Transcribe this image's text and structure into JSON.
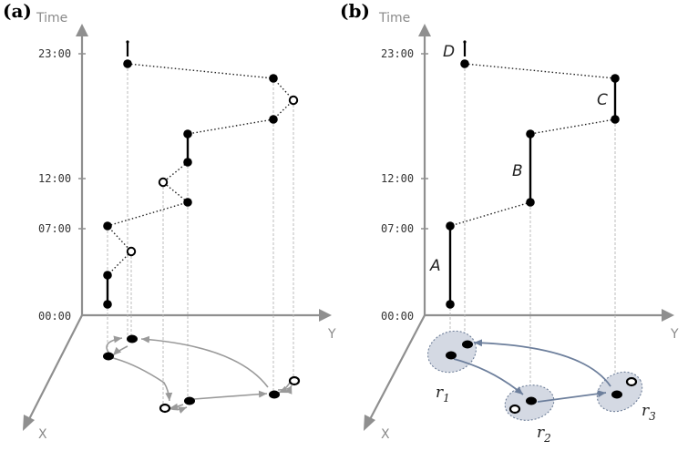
{
  "panels": [
    {
      "label": "(a)"
    },
    {
      "label": "(b)"
    }
  ],
  "axes": {
    "time": "Time",
    "y": "Y",
    "x": "X"
  },
  "time_ticks": [
    "23:00",
    "12:00",
    "07:00",
    "00:00"
  ],
  "segments": [
    "A",
    "B",
    "C",
    "D"
  ],
  "regions": [
    {
      "letter": "r",
      "sub": "1"
    },
    {
      "letter": "r",
      "sub": "2"
    },
    {
      "letter": "r",
      "sub": "3"
    }
  ],
  "colors": {
    "axis": "#8f8f8f",
    "region_fill": "#d4d9e3",
    "region_stroke": "#6f7f99"
  }
}
